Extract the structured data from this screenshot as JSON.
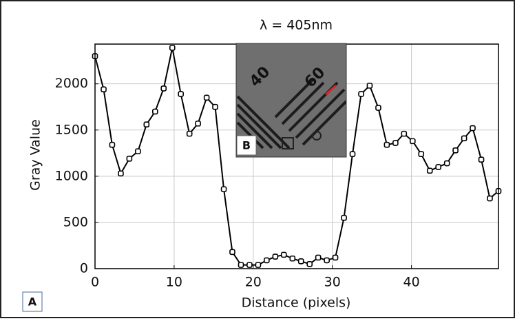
{
  "chart_data": {
    "type": "line",
    "title": "λ = 405nm",
    "x_label": "Distance (pixels)",
    "y_label": "Gray Value",
    "panel_label": "A",
    "inset_label": "B",
    "inset_texts": [
      "40",
      "60"
    ],
    "x": [
      0,
      1.09,
      2.17,
      3.26,
      4.34,
      5.43,
      6.51,
      7.6,
      8.68,
      9.77,
      10.85,
      11.94,
      13.02,
      14.11,
      15.19,
      16.28,
      17.36,
      18.45,
      19.53,
      20.62,
      21.7,
      22.79,
      23.87,
      24.96,
      26.04,
      27.13,
      28.21,
      29.3,
      30.38,
      31.47,
      32.55,
      33.64,
      34.72,
      35.81,
      36.89,
      37.98,
      39.06,
      40.15,
      41.23,
      42.32,
      43.4,
      44.49,
      45.57,
      46.66,
      47.74,
      48.83,
      49.91,
      51.0
    ],
    "series": [
      {
        "color": "#000000",
        "values": [
          2300,
          1940,
          1340,
          1030,
          1190,
          1270,
          1560,
          1700,
          1950,
          2390,
          1890,
          1460,
          1570,
          1850,
          1750,
          860,
          180,
          40,
          40,
          40,
          90,
          130,
          150,
          110,
          80,
          50,
          120,
          90,
          120,
          550,
          1240,
          1890,
          1980,
          1740,
          1340,
          1360,
          1460,
          1380,
          1240,
          1060,
          1100,
          1140,
          1280,
          1410,
          1520,
          1180,
          760,
          840
        ]
      }
    ],
    "xlim": [
      0,
      51
    ],
    "ylim": [
      0,
      2430
    ],
    "xticks": [
      0,
      10,
      20,
      30,
      40
    ],
    "yticks": [
      0,
      500,
      1000,
      1500,
      2000
    ],
    "grid": true
  }
}
